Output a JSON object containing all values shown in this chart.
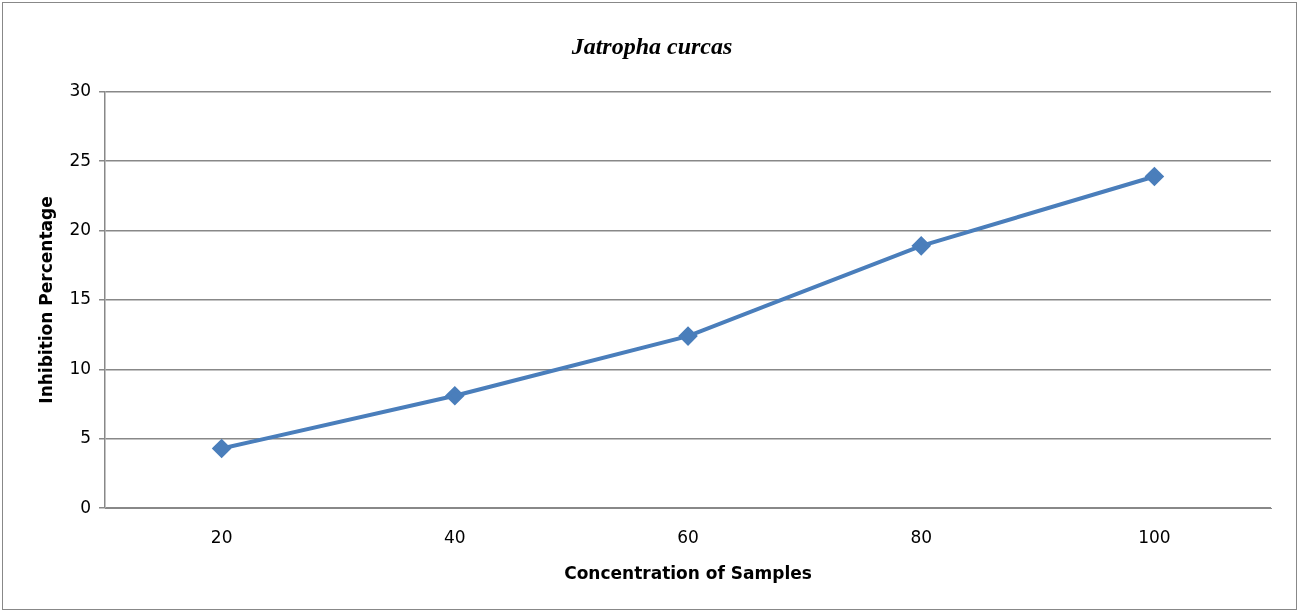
{
  "chart_data": {
    "type": "line",
    "title": "Jatropha curcas",
    "xlabel": "Concentration of Samples",
    "ylabel": "Inhibition Percentage",
    "categories": [
      "20",
      "40",
      "60",
      "80",
      "100"
    ],
    "series": [
      {
        "color": "#4a7ebb",
        "values": [
          4.3,
          8.1,
          12.4,
          18.9,
          23.9
        ]
      }
    ],
    "ylim": [
      0,
      30
    ],
    "yticks": [
      0,
      5,
      10,
      15,
      20,
      25,
      30
    ],
    "grid": "y",
    "legend": false,
    "marker": "diamond",
    "line_style": "solid"
  }
}
